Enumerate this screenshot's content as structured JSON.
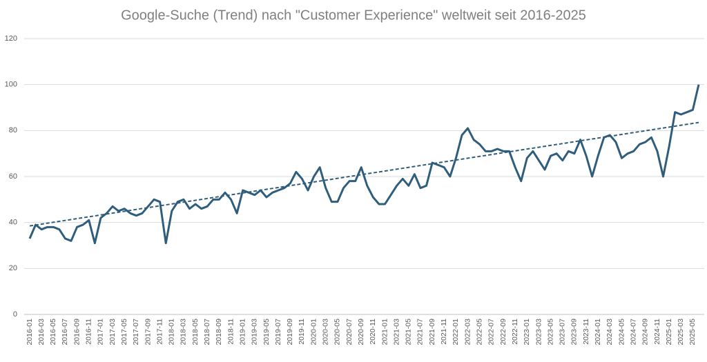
{
  "chart_data": {
    "type": "line",
    "title": "Google-Suche (Trend) nach \"Customer Experience\" weltweit seit 2016-2025",
    "categories": [
      "2016-01",
      null,
      "2016-03",
      null,
      "2016-05",
      null,
      "2016-07",
      null,
      "2016-09",
      null,
      "2016-11",
      null,
      "2017-01",
      null,
      "2017-03",
      null,
      "2017-05",
      null,
      "2017-07",
      null,
      "2017-09",
      null,
      "2017-11",
      null,
      "2018-01",
      null,
      "2018-03",
      null,
      "2018-05",
      null,
      "2018-07",
      null,
      "2018-09",
      null,
      "2018-11",
      null,
      "2019-01",
      null,
      "2019-03",
      null,
      "2019-05",
      null,
      "2019-07",
      null,
      "2019-09",
      null,
      "2019-11",
      null,
      "2020-01",
      null,
      "2020-03",
      null,
      "2020-05",
      null,
      "2020-07",
      null,
      "2020-09",
      null,
      "2020-11",
      null,
      "2021-01",
      null,
      "2021-03",
      null,
      "2021-05",
      null,
      "2021-07",
      null,
      "2021-09",
      null,
      "2021-11",
      null,
      "2022-01",
      null,
      "2022-03",
      null,
      "2022-05",
      null,
      "2022-07",
      null,
      "2022-09",
      null,
      "2022-11",
      null,
      "2023-01",
      null,
      "2023-03",
      null,
      "2023-05",
      null,
      "2023-07",
      null,
      "2023-09",
      null,
      "2023-11",
      null,
      "2024-01",
      null,
      "2024-03",
      null,
      "2024-05",
      null,
      "2024-07",
      null,
      "2024-09",
      null,
      "2024-11",
      null,
      "2025-01",
      null,
      "2025-03",
      null,
      "2025-05",
      null
    ],
    "series": [
      {
        "color": "#2f5d7c",
        "values": [
          33,
          39,
          37,
          38,
          38,
          37,
          33,
          32,
          38,
          39,
          41,
          31,
          42,
          44,
          47,
          45,
          46,
          44,
          43,
          44,
          47,
          50,
          49,
          31,
          45,
          49,
          50,
          46,
          48,
          46,
          47,
          50,
          50,
          53,
          50,
          44,
          54,
          53,
          52,
          54,
          51,
          53,
          54,
          55,
          57,
          62,
          59,
          54,
          60,
          64,
          55,
          49,
          49,
          55,
          58,
          58,
          64,
          56,
          51,
          48,
          48,
          52,
          56,
          59,
          56,
          61,
          55,
          56,
          66,
          65,
          64,
          60,
          68,
          78,
          81,
          76,
          74,
          71,
          71,
          72,
          71,
          71,
          64,
          58,
          68,
          71,
          67,
          63,
          69,
          70,
          67,
          71,
          70,
          76,
          69,
          60,
          69,
          77,
          78,
          75,
          68,
          70,
          71,
          74,
          75,
          77,
          71,
          60,
          73,
          88,
          87,
          88,
          89,
          100
        ]
      }
    ],
    "trendline": {
      "color": "#2f5d7c",
      "dashed": true,
      "start": 38.5,
      "end": 83.5
    },
    "ylim": [
      0,
      120
    ],
    "yticks": [
      0,
      20,
      40,
      60,
      80,
      100,
      120
    ],
    "grid": true
  }
}
